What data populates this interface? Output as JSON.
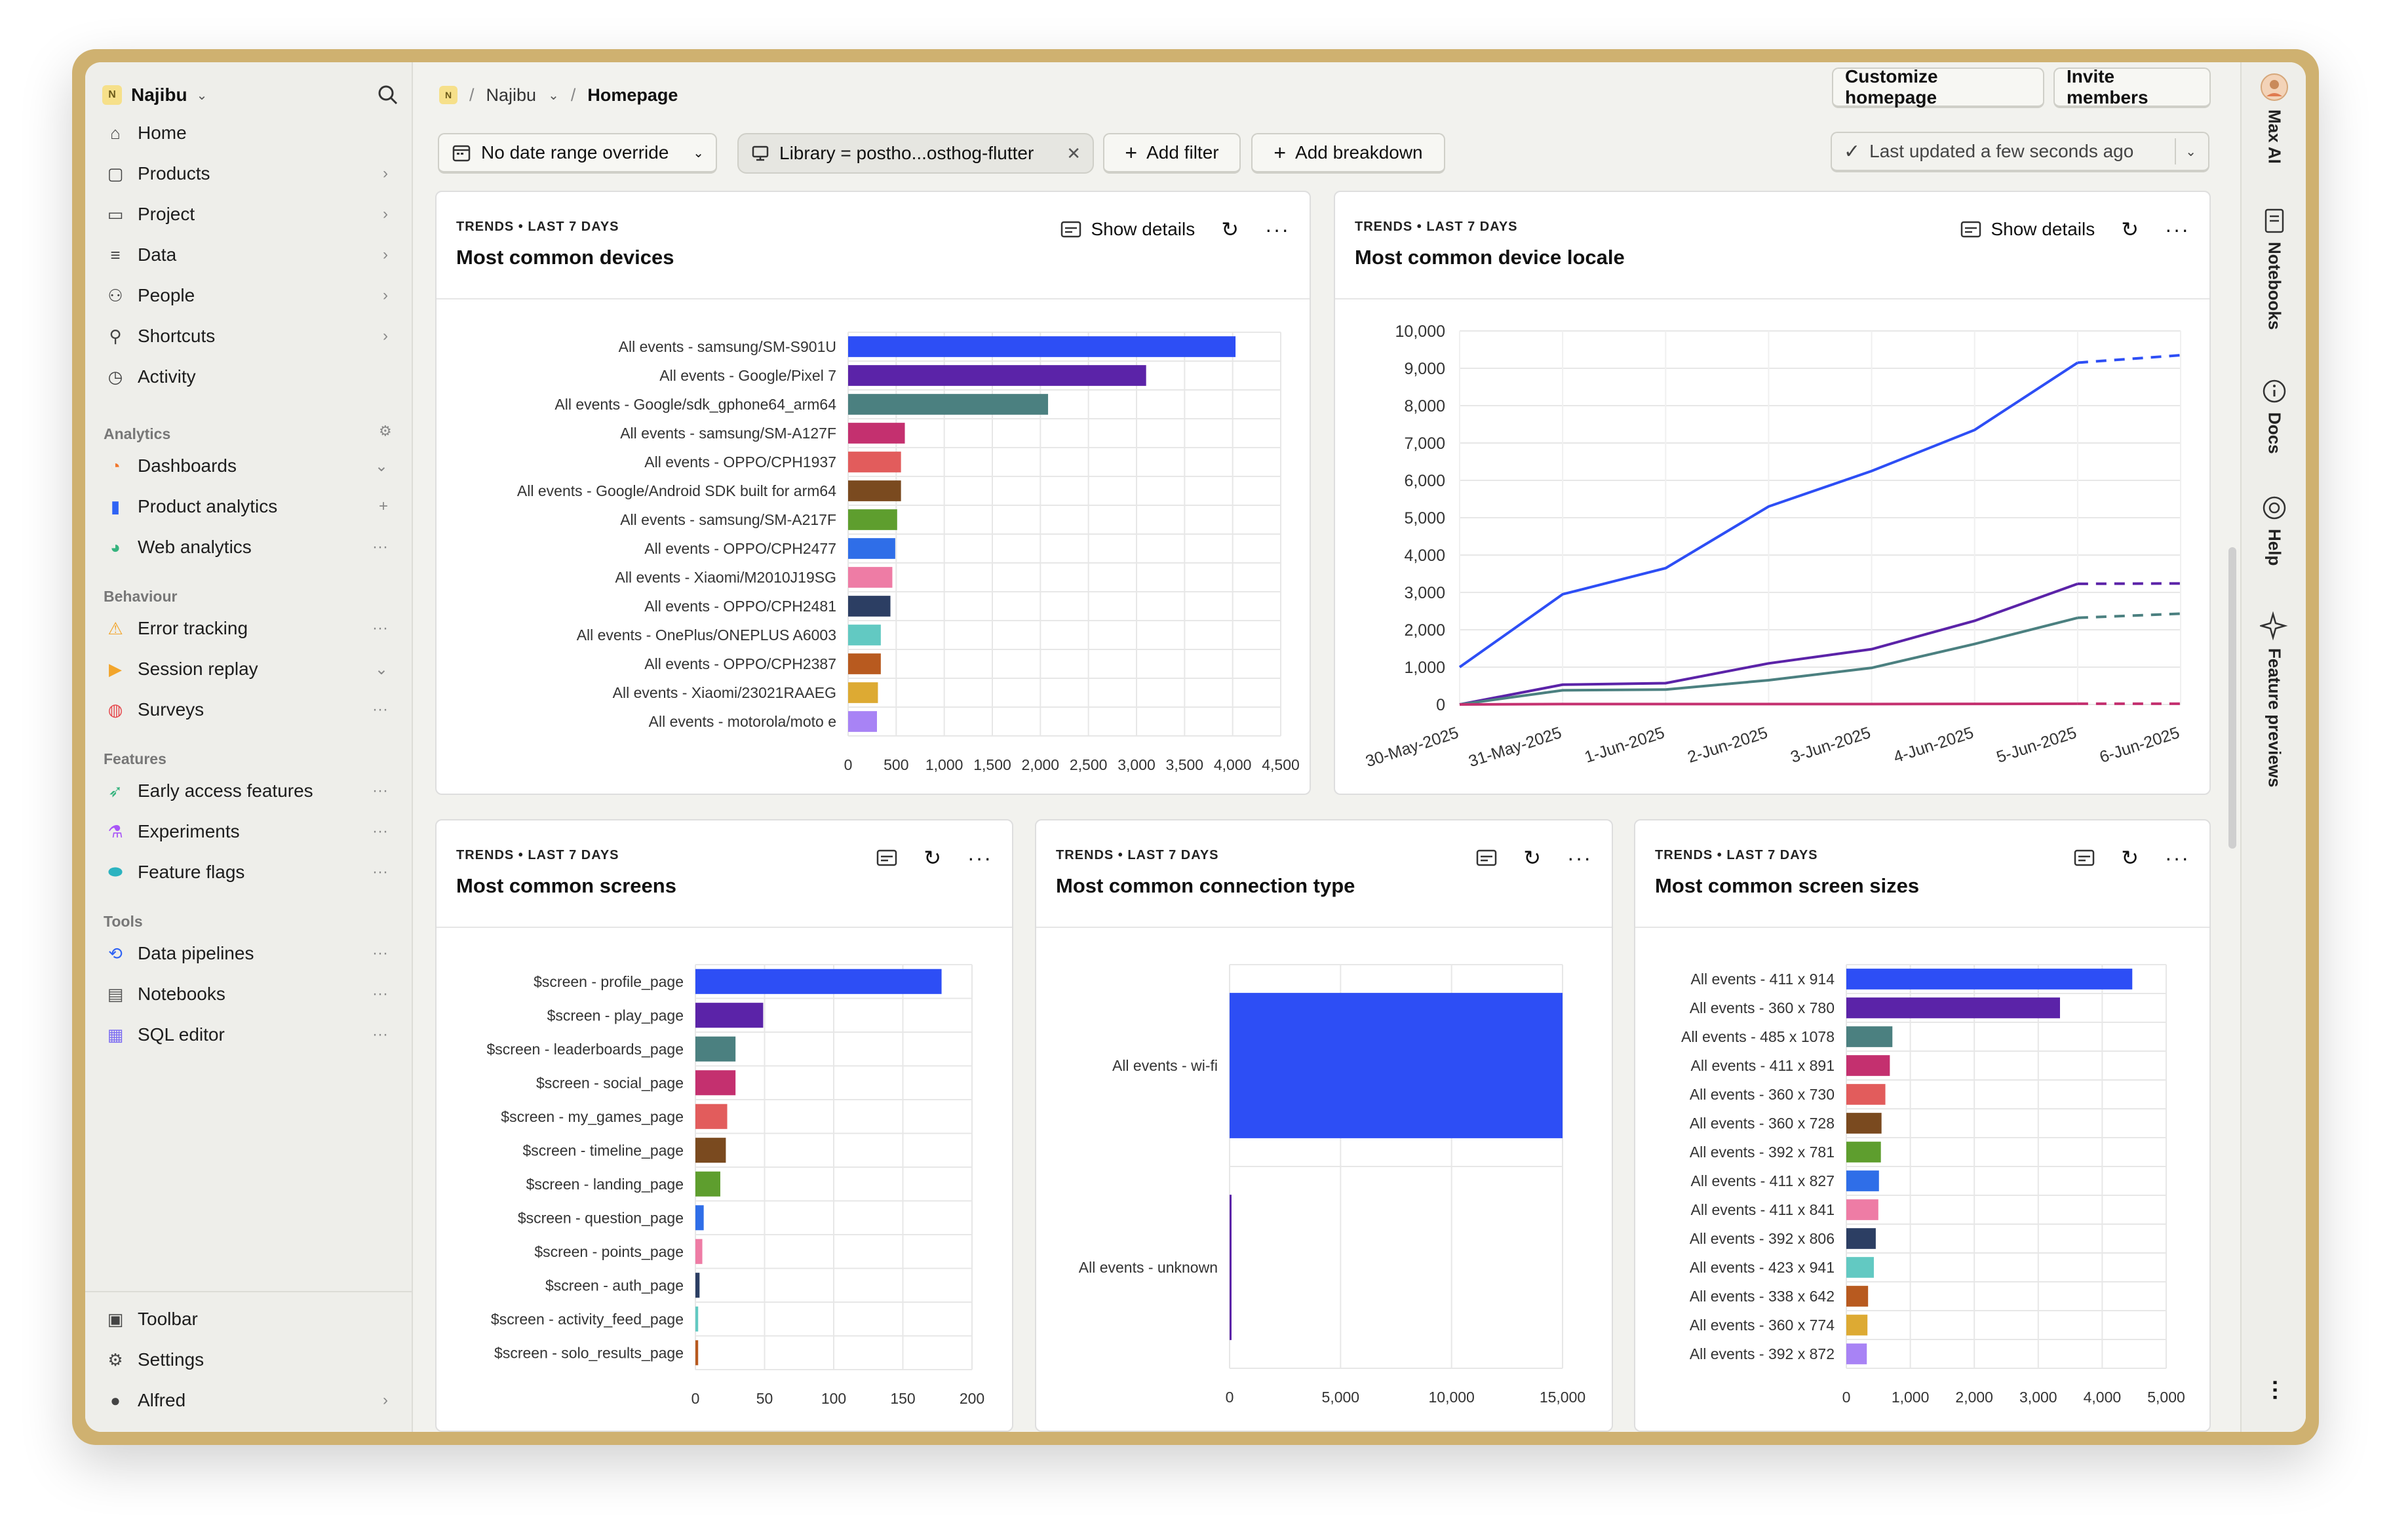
{
  "workspace": {
    "name": "Najibu",
    "logo_letter": "N"
  },
  "sidebar": {
    "primary": [
      {
        "label": "Home",
        "icon": "home-icon",
        "tail": ""
      },
      {
        "label": "Products",
        "icon": "box-icon",
        "tail": "›"
      },
      {
        "label": "Project",
        "icon": "folder-icon",
        "tail": "›"
      },
      {
        "label": "Data",
        "icon": "database-icon",
        "tail": "›"
      },
      {
        "label": "People",
        "icon": "people-icon",
        "tail": "›"
      },
      {
        "label": "Shortcuts",
        "icon": "pin-icon",
        "tail": "›"
      },
      {
        "label": "Activity",
        "icon": "clock-icon",
        "tail": ""
      }
    ],
    "sections": [
      {
        "label": "Analytics",
        "items": [
          {
            "label": "Dashboards",
            "icon": "dashboard-icon",
            "tail": "⌄",
            "color": "#f2762b"
          },
          {
            "label": "Product analytics",
            "icon": "bar-chart-icon",
            "tail": "+",
            "color": "#2f63f4"
          },
          {
            "label": "Web analytics",
            "icon": "web-analytics-icon",
            "tail": "···",
            "color": "#36b37e"
          }
        ]
      },
      {
        "label": "Behaviour",
        "items": [
          {
            "label": "Error tracking",
            "icon": "warning-icon",
            "tail": "···",
            "color": "#f2a52b"
          },
          {
            "label": "Session replay",
            "icon": "replay-icon",
            "tail": "⌄",
            "color": "#f2a52b"
          },
          {
            "label": "Surveys",
            "icon": "survey-icon",
            "tail": "···",
            "color": "#e5484d"
          }
        ]
      },
      {
        "label": "Features",
        "items": [
          {
            "label": "Early access features",
            "icon": "rocket-icon",
            "tail": "···",
            "color": "#36b37e"
          },
          {
            "label": "Experiments",
            "icon": "flask-icon",
            "tail": "···",
            "color": "#a855f7"
          },
          {
            "label": "Feature flags",
            "icon": "toggle-icon",
            "tail": "···",
            "color": "#2bb3c0"
          }
        ]
      },
      {
        "label": "Tools",
        "items": [
          {
            "label": "Data pipelines",
            "icon": "pipeline-icon",
            "tail": "···",
            "color": "#2f63f4"
          },
          {
            "label": "Notebooks",
            "icon": "notebook-icon",
            "tail": "···",
            "color": "#555555"
          },
          {
            "label": "SQL editor",
            "icon": "sql-icon",
            "tail": "···",
            "color": "#7c6cf2"
          }
        ]
      }
    ],
    "bottom": [
      {
        "label": "Toolbar",
        "icon": "toolbar-icon",
        "tail": ""
      },
      {
        "label": "Settings",
        "icon": "settings-icon",
        "tail": ""
      },
      {
        "label": "Alfred",
        "icon": "avatar-icon",
        "tail": "›"
      }
    ]
  },
  "breadcrumb": {
    "workspace": "Najibu",
    "page": "Homepage",
    "sep": "/"
  },
  "header_buttons": {
    "customize": "Customize homepage",
    "invite": "Invite members"
  },
  "filters": {
    "date": "No date range override",
    "library": "Library = postho...osthog-flutter",
    "add_filter": "Add filter",
    "add_breakdown": "Add breakdown",
    "last_updated": "Last updated a few seconds ago"
  },
  "rail": [
    {
      "label": "Max AI",
      "icon": "max-ai-avatar-icon"
    },
    {
      "label": "Notebooks",
      "icon": "notebook-icon"
    },
    {
      "label": "Docs",
      "icon": "info-icon"
    },
    {
      "label": "Help",
      "icon": "lifebuoy-icon"
    },
    {
      "label": "Feature previews",
      "icon": "sparkle-icon"
    }
  ],
  "cards": {
    "devices": {
      "kicker": "TRENDS • LAST 7 DAYS",
      "title": "Most common devices",
      "show_details": "Show details"
    },
    "locale": {
      "kicker": "TRENDS • LAST 7 DAYS",
      "title": "Most common device locale",
      "show_details": "Show details"
    },
    "screens": {
      "kicker": "TRENDS • LAST 7 DAYS",
      "title": "Most common screens"
    },
    "connection": {
      "kicker": "TRENDS • LAST 7 DAYS",
      "title": "Most common connection type"
    },
    "sizes": {
      "kicker": "TRENDS • LAST 7 DAYS",
      "title": "Most common screen sizes"
    }
  },
  "chart_data": [
    {
      "id": "devices",
      "type": "bar",
      "orientation": "horizontal",
      "categories": [
        "All events - samsung/SM-S901U",
        "All events - Google/Pixel 7",
        "All events - Google/sdk_gphone64_arm64",
        "All events - samsung/SM-A127F",
        "All events - OPPO/CPH1937",
        "All events - Google/Android SDK built for arm64",
        "All events - samsung/SM-A217F",
        "All events - OPPO/CPH2477",
        "All events - Xiaomi/M2010J19SG",
        "All events - OPPO/CPH2481",
        "All events - OnePlus/ONEPLUS A6003",
        "All events - OPPO/CPH2387",
        "All events - Xiaomi/23021RAAEG",
        "All events - motorola/moto e"
      ],
      "values": [
        4030,
        3100,
        2080,
        590,
        550,
        550,
        510,
        490,
        460,
        440,
        340,
        340,
        310,
        300
      ],
      "colors": [
        "#2d4ef5",
        "#5b23a8",
        "#4b8080",
        "#c4306f",
        "#e25c5c",
        "#7a4a1f",
        "#5e9e2e",
        "#2f6ee8",
        "#ee7ca5",
        "#2c3e63",
        "#62c9c2",
        "#b85a1f",
        "#ddaa33",
        "#a883f5"
      ],
      "xticks": [
        0,
        500,
        1000,
        1500,
        2000,
        2500,
        3000,
        3500,
        4000,
        4500
      ],
      "xtick_labels": [
        "0",
        "500",
        "1,000",
        "1,500",
        "2,000",
        "2,500",
        "3,000",
        "3,500",
        "4,000",
        "4,500"
      ],
      "xlim": [
        0,
        4500
      ]
    },
    {
      "id": "locale",
      "type": "line",
      "x": [
        "30-May-2025",
        "31-May-2025",
        "1-Jun-2025",
        "2-Jun-2025",
        "3-Jun-2025",
        "4-Jun-2025",
        "5-Jun-2025",
        "6-Jun-2025"
      ],
      "series": [
        {
          "values": [
            1000,
            2950,
            3650,
            5300,
            6250,
            7350,
            9150,
            9350
          ],
          "color": "#2d4ef5"
        },
        {
          "values": [
            0,
            530,
            570,
            1100,
            1480,
            2240,
            3230,
            3240
          ],
          "color": "#5b23a8"
        },
        {
          "values": [
            0,
            380,
            400,
            650,
            980,
            1620,
            2320,
            2430
          ],
          "color": "#4b8080"
        },
        {
          "values": [
            0,
            10,
            10,
            10,
            10,
            15,
            20,
            20
          ],
          "color": "#c4306f"
        }
      ],
      "dashed_last_segment": true,
      "yticks": [
        0,
        1000,
        2000,
        3000,
        4000,
        5000,
        6000,
        7000,
        8000,
        9000,
        10000
      ],
      "ytick_labels": [
        "0",
        "1,000",
        "2,000",
        "3,000",
        "4,000",
        "5,000",
        "6,000",
        "7,000",
        "8,000",
        "9,000",
        "10,000"
      ],
      "ylim": [
        0,
        10000
      ]
    },
    {
      "id": "screens",
      "type": "bar",
      "orientation": "horizontal",
      "categories": [
        "$screen - profile_page",
        "$screen - play_page",
        "$screen - leaderboards_page",
        "$screen - social_page",
        "$screen - my_games_page",
        "$screen - timeline_page",
        "$screen - landing_page",
        "$screen - question_page",
        "$screen - points_page",
        "$screen - auth_page",
        "$screen - activity_feed_page",
        "$screen - solo_results_page"
      ],
      "values": [
        178,
        49,
        29,
        29,
        23,
        22,
        18,
        6,
        5,
        3,
        2,
        2
      ],
      "colors": [
        "#2d4ef5",
        "#5b23a8",
        "#4b8080",
        "#c4306f",
        "#e25c5c",
        "#7a4a1f",
        "#5e9e2e",
        "#2f6ee8",
        "#ee7ca5",
        "#2c3e63",
        "#62c9c2",
        "#b85a1f"
      ],
      "xticks": [
        0,
        50,
        100,
        150,
        200
      ],
      "xtick_labels": [
        "0",
        "50",
        "100",
        "150",
        "200"
      ],
      "xlim": [
        0,
        200
      ]
    },
    {
      "id": "connection",
      "type": "bar",
      "orientation": "horizontal",
      "categories": [
        "All events - wi-fi",
        "All events - unknown"
      ],
      "values": [
        15000,
        80
      ],
      "colors": [
        "#2d4ef5",
        "#5b23a8"
      ],
      "xticks": [
        0,
        5000,
        10000,
        15000
      ],
      "xtick_labels": [
        "0",
        "5,000",
        "10,000",
        "15,000"
      ],
      "xlim": [
        0,
        15000
      ]
    },
    {
      "id": "sizes",
      "type": "bar",
      "orientation": "horizontal",
      "categories": [
        "All events - 411 x 914",
        "All events - 360 x 780",
        "All events - 485 x 1078",
        "All events - 411 x 891",
        "All events - 360 x 730",
        "All events - 360 x 728",
        "All events - 392 x 781",
        "All events - 411 x 827",
        "All events - 411 x 841",
        "All events - 392 x 806",
        "All events - 423 x 941",
        "All events - 338 x 642",
        "All events - 360 x 774",
        "All events - 392 x 872"
      ],
      "values": [
        4470,
        3340,
        720,
        680,
        610,
        550,
        540,
        510,
        500,
        460,
        430,
        340,
        330,
        320
      ],
      "colors": [
        "#2d4ef5",
        "#5b23a8",
        "#4b8080",
        "#c4306f",
        "#e25c5c",
        "#7a4a1f",
        "#5e9e2e",
        "#2f6ee8",
        "#ee7ca5",
        "#2c3e63",
        "#62c9c2",
        "#b85a1f",
        "#ddaa33",
        "#a883f5"
      ],
      "xticks": [
        0,
        1000,
        2000,
        3000,
        4000,
        5000
      ],
      "xtick_labels": [
        "0",
        "1,000",
        "2,000",
        "3,000",
        "4,000",
        "5,000"
      ],
      "xlim": [
        0,
        5000
      ]
    }
  ]
}
